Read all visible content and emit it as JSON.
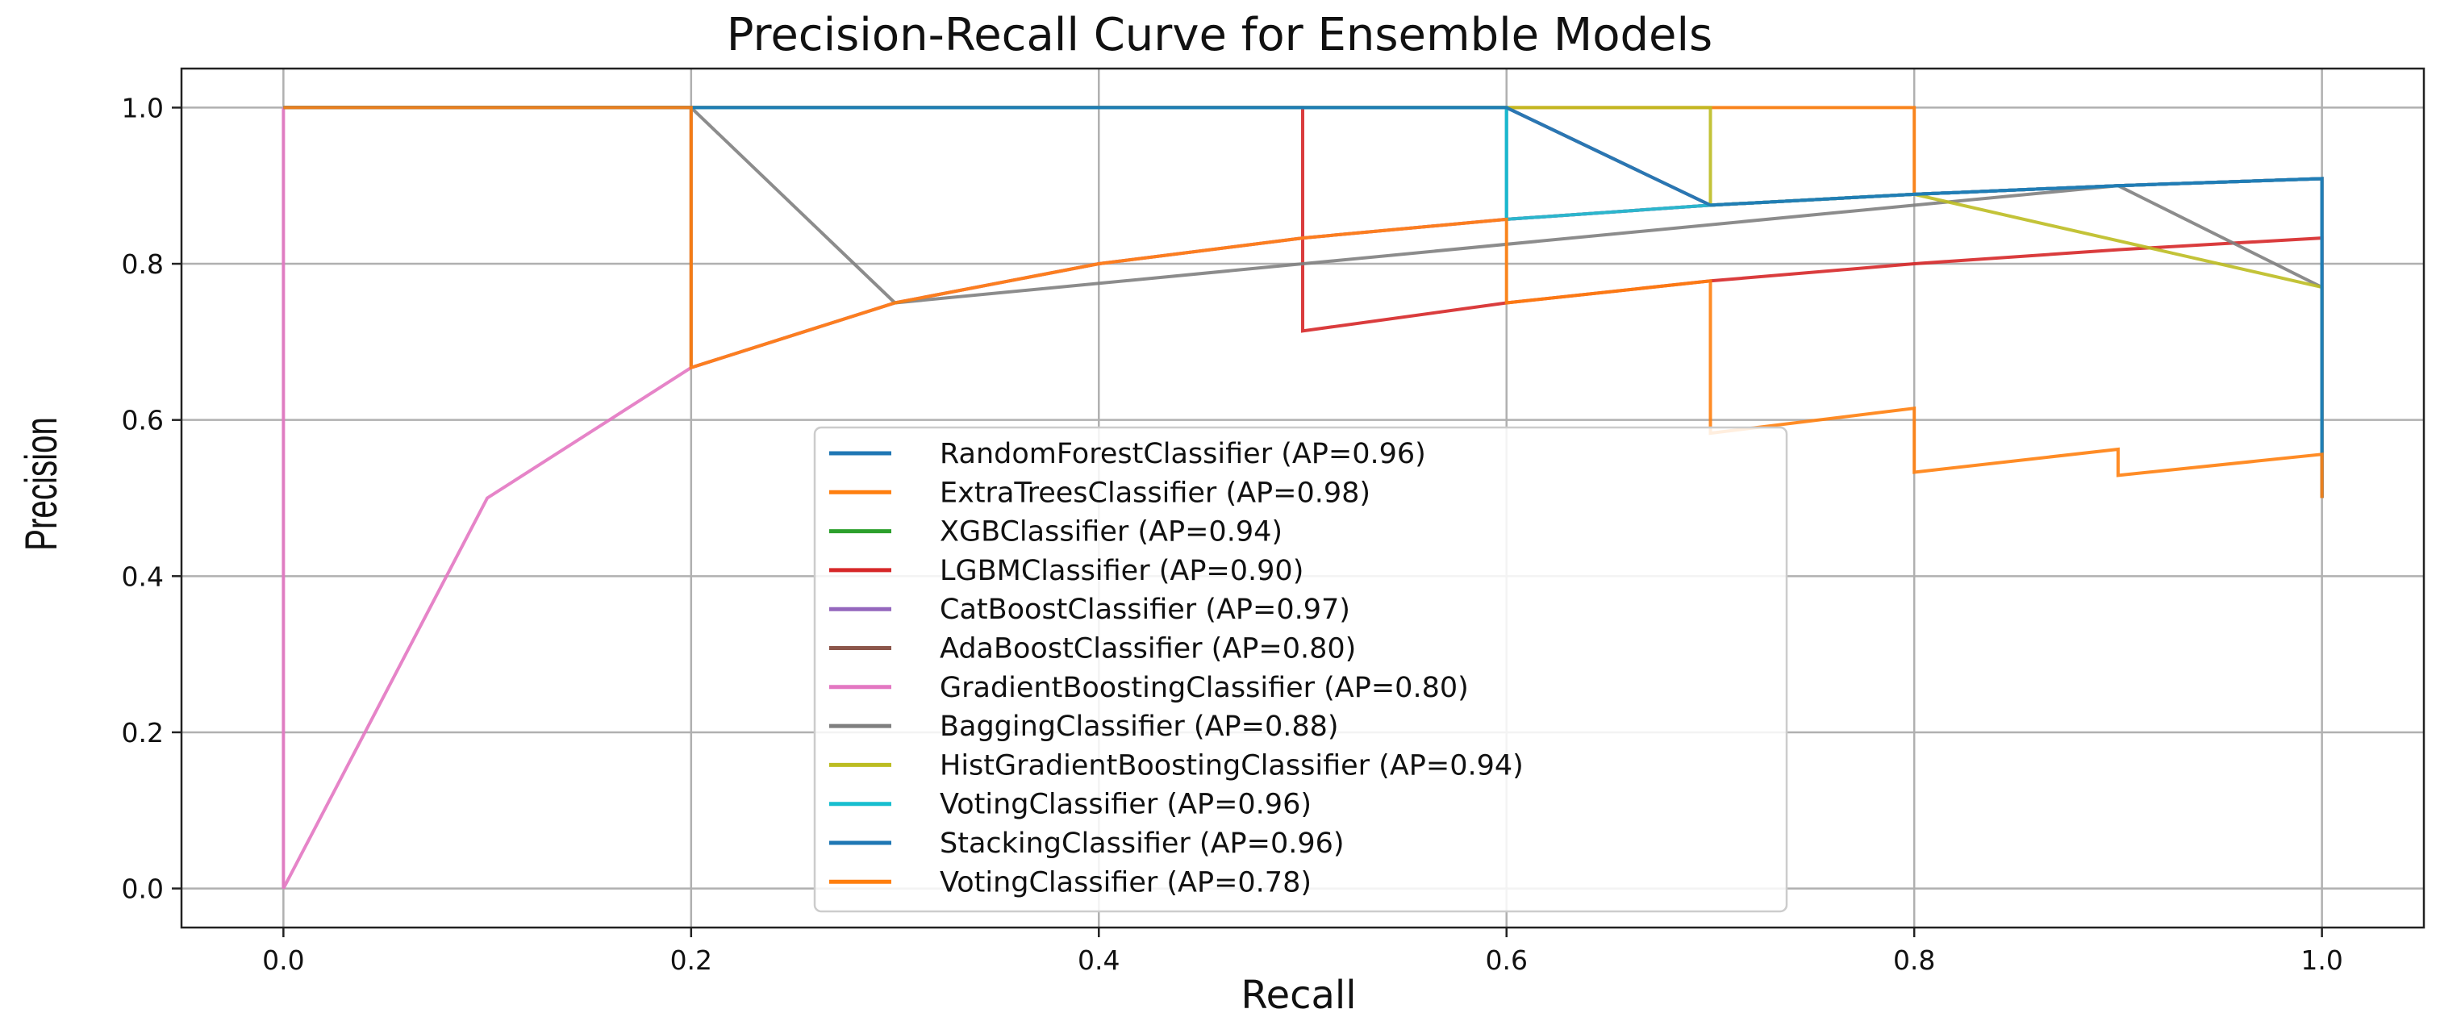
{
  "chart_data": {
    "type": "line",
    "title": "Precision-Recall Curve for Ensemble Models",
    "xlabel": "Recall",
    "ylabel": "Precision",
    "xlim": [
      -0.05,
      1.05
    ],
    "ylim": [
      -0.05,
      1.05
    ],
    "xticks": [
      0.0,
      0.2,
      0.4,
      0.6,
      0.8,
      1.0
    ],
    "xtick_labels": [
      "0.0",
      "0.2",
      "0.4",
      "0.6",
      "0.8",
      "1.0"
    ],
    "yticks": [
      0.0,
      0.2,
      0.4,
      0.6,
      0.8,
      1.0
    ],
    "ytick_labels": [
      "0.0",
      "0.2",
      "0.4",
      "0.6",
      "0.8",
      "1.0"
    ],
    "grid": true,
    "legend_position": "lower-center",
    "series": [
      {
        "name": "RandomForestClassifier (AP=0.96)",
        "color": "#1f77b4",
        "x": [
          0,
          0,
          0.6,
          0.6,
          0.7,
          0.8,
          0.9,
          1.0,
          1.0
        ],
        "y": [
          1,
          1,
          1,
          0.857,
          0.875,
          0.889,
          0.9,
          0.909,
          0.5
        ]
      },
      {
        "name": "ExtraTreesClassifier (AP=0.98)",
        "color": "#ff7f0e",
        "x": [
          0,
          0,
          0.7,
          0.8,
          0.8,
          0.9,
          1.0,
          1.0
        ],
        "y": [
          1,
          1,
          1,
          1,
          0.889,
          0.9,
          0.909,
          0.5
        ]
      },
      {
        "name": "XGBClassifier (AP=0.94)",
        "color": "#2ca02c",
        "x": [
          0,
          0,
          0.6,
          0.7,
          0.8,
          0.9,
          1.0,
          1.0
        ],
        "y": [
          1,
          1,
          1,
          0.875,
          0.889,
          0.9,
          0.909,
          0.5
        ]
      },
      {
        "name": "LGBMClassifier (AP=0.90)",
        "color": "#d62728",
        "x": [
          0,
          0,
          0.5,
          0.5,
          0.6,
          0.7,
          0.8,
          0.9,
          1.0,
          1.0
        ],
        "y": [
          1,
          1,
          1,
          0.714,
          0.75,
          0.778,
          0.8,
          0.818,
          0.833,
          0.5
        ]
      },
      {
        "name": "CatBoostClassifier (AP=0.97)",
        "color": "#9467bd",
        "x": [
          0,
          0,
          0.6,
          0.6,
          0.7,
          0.8,
          0.9,
          1.0,
          1.0
        ],
        "y": [
          1,
          1,
          1,
          1,
          0.875,
          0.889,
          0.9,
          0.909,
          0.5
        ]
      },
      {
        "name": "AdaBoostClassifier (AP=0.80)",
        "color": "#8c564b",
        "x": [
          0,
          0,
          0.2,
          0.2,
          0.3,
          0.4,
          0.5,
          0.6,
          0.7,
          0.8,
          0.9,
          1.0,
          1.0
        ],
        "y": [
          1,
          1,
          1,
          0.667,
          0.75,
          0.8,
          0.833,
          0.857,
          0.875,
          0.889,
          0.9,
          0.909,
          0.5
        ]
      },
      {
        "name": "GradientBoostingClassifier (AP=0.80)",
        "color": "#e377c2",
        "x": [
          0,
          0,
          0.1,
          0.2,
          0.3,
          0.4,
          0.5,
          0.6,
          0.7,
          0.8,
          0.9,
          1.0,
          1.0
        ],
        "y": [
          1,
          0,
          0.5,
          0.667,
          0.75,
          0.8,
          0.833,
          0.857,
          0.875,
          0.889,
          0.9,
          0.909,
          0.5
        ]
      },
      {
        "name": "BaggingClassifier (AP=0.88)",
        "color": "#7f7f7f",
        "x": [
          0,
          0,
          0.2,
          0.3,
          0.9,
          1.0,
          1.0
        ],
        "y": [
          1,
          1,
          1,
          0.75,
          0.9,
          0.77,
          0.5
        ]
      },
      {
        "name": "HistGradientBoostingClassifier (AP=0.94)",
        "color": "#bcbd22",
        "x": [
          0,
          0,
          0.7,
          0.7,
          0.8,
          1.0,
          1.0
        ],
        "y": [
          1,
          1,
          1,
          0.875,
          0.889,
          0.77,
          0.5
        ]
      },
      {
        "name": "VotingClassifier (AP=0.96)",
        "color": "#17becf",
        "x": [
          0,
          0,
          0.6,
          0.6,
          0.7,
          0.8,
          0.9,
          1.0,
          1.0
        ],
        "y": [
          1,
          1,
          1,
          0.857,
          0.875,
          0.889,
          0.9,
          0.909,
          0.5
        ]
      },
      {
        "name": "StackingClassifier (AP=0.96)",
        "color": "#1f77b4",
        "x": [
          0,
          0,
          0.6,
          0.7,
          0.8,
          0.9,
          1.0,
          1.0
        ],
        "y": [
          1,
          1,
          1,
          0.875,
          0.889,
          0.9,
          0.909,
          0.5
        ]
      },
      {
        "name": "VotingClassifier (AP=0.78)",
        "color": "#ff7f0e",
        "x": [
          0,
          0,
          0.2,
          0.2,
          0.3,
          0.4,
          0.5,
          0.6,
          0.6,
          0.7,
          0.7,
          0.8,
          0.8,
          0.9,
          0.9,
          1.0,
          1.0
        ],
        "y": [
          1,
          1,
          1,
          0.667,
          0.75,
          0.8,
          0.833,
          0.857,
          0.75,
          0.778,
          0.583,
          0.615,
          0.533,
          0.5625,
          0.529,
          0.556,
          0.5
        ]
      }
    ]
  }
}
